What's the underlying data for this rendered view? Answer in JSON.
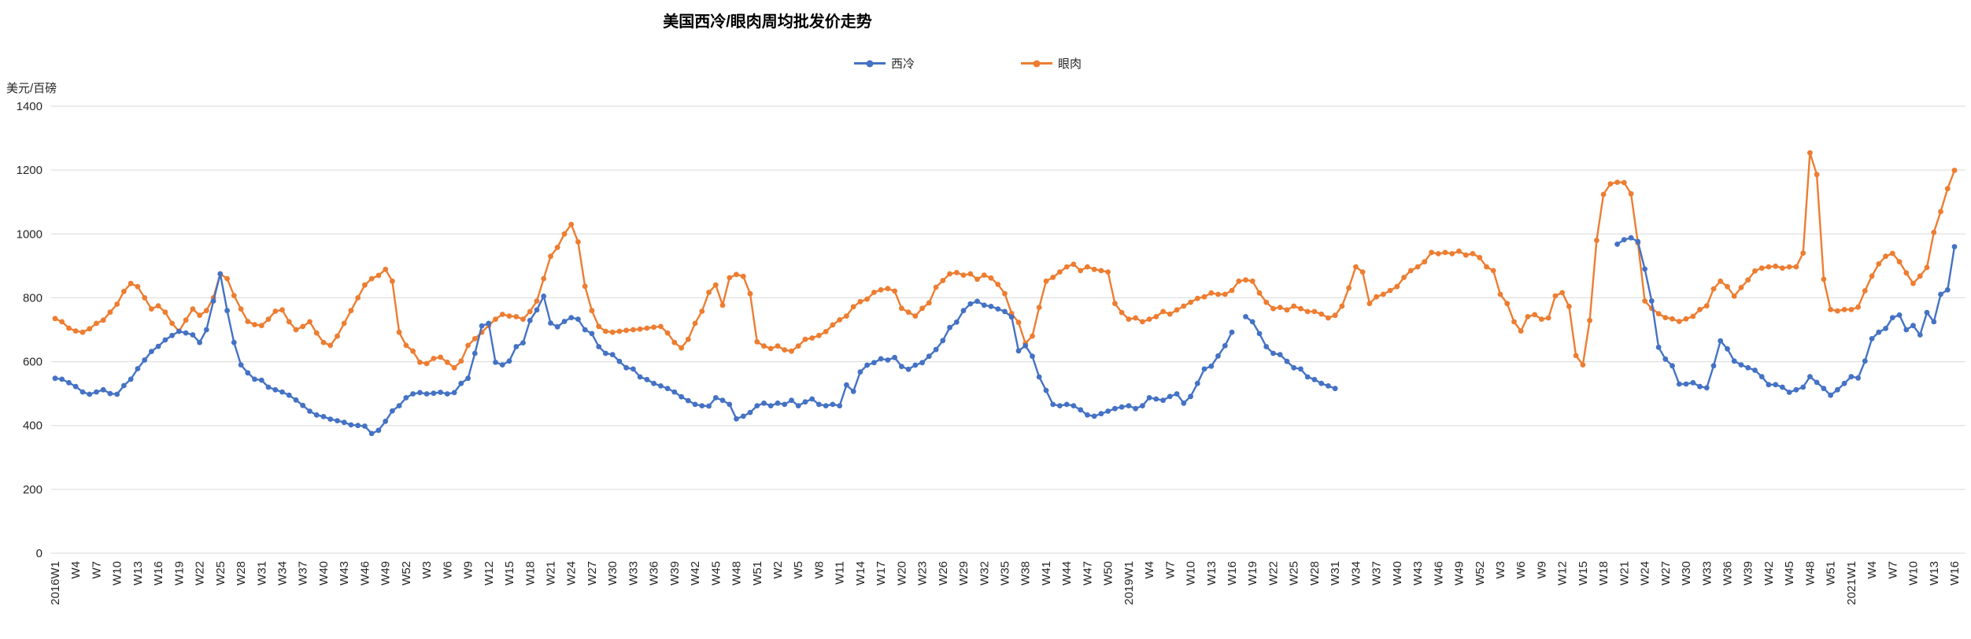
{
  "title": "美国西冷/眼肉周均批发价走势",
  "y_axis_unit": "美元/百磅",
  "colors": {
    "grid": "#D9D9D9",
    "axis_text": "#262626",
    "background": "#FFFFFF"
  },
  "chart_data": {
    "type": "line",
    "title": "美国西冷/眼肉周均批发价走势",
    "xlabel": "",
    "ylabel": "美元/百磅",
    "ylim": [
      0,
      1400
    ],
    "ytick_step": 200,
    "grid": true,
    "legend_position": "top-center",
    "x_tick_interval": 3,
    "x_tick_labels": [
      "2016W1",
      "W4",
      "W7",
      "W10",
      "W13",
      "W16",
      "W19",
      "W22",
      "W25",
      "W28",
      "W31",
      "W34",
      "W37",
      "W40",
      "W43",
      "W46",
      "W49",
      "W52",
      "W3",
      "W6",
      "W9",
      "W12",
      "W15",
      "W18",
      "W21",
      "W24",
      "W27",
      "W30",
      "W33",
      "W36",
      "W39",
      "W42",
      "W45",
      "W48",
      "W51",
      "W2",
      "W5",
      "W8",
      "W11",
      "W14",
      "W17",
      "W20",
      "W23",
      "W26",
      "W29",
      "W32",
      "W35",
      "W38",
      "W41",
      "W44",
      "W47",
      "W50",
      "2019W1",
      "W4",
      "W7",
      "W10",
      "W13",
      "W16",
      "W19",
      "W22",
      "W25",
      "W28",
      "W31",
      "W34",
      "W37",
      "W40",
      "W43",
      "W46",
      "W49",
      "W52",
      "W3",
      "W6",
      "W9",
      "W12",
      "W15",
      "W18",
      "W21",
      "W24",
      "W27",
      "W30",
      "W33",
      "W36",
      "W39",
      "W42",
      "W45",
      "W48",
      "W51",
      "2021W1",
      "W4",
      "W7",
      "W10",
      "W13",
      "W16"
    ],
    "series": [
      {
        "name": "西冷",
        "color": "#4472C4",
        "values": [
          548,
          545,
          534,
          522,
          505,
          498,
          505,
          512,
          500,
          498,
          525,
          545,
          578,
          605,
          632,
          648,
          668,
          682,
          695,
          690,
          684,
          660,
          700,
          790,
          875,
          760,
          660,
          590,
          565,
          545,
          542,
          520,
          512,
          505,
          495,
          480,
          463,
          445,
          433,
          428,
          420,
          415,
          410,
          402,
          400,
          398,
          375,
          385,
          413,
          446,
          462,
          487,
          499,
          503,
          499,
          501,
          504,
          499,
          503,
          532,
          548,
          626,
          712,
          720,
          598,
          590,
          602,
          647,
          659,
          729,
          762,
          805,
          721,
          709,
          726,
          738,
          733,
          700,
          688,
          647,
          626,
          622,
          601,
          581,
          577,
          552,
          544,
          532,
          524,
          516,
          505,
          490,
          478,
          466,
          462,
          461,
          487,
          479,
          466,
          421,
          429,
          441,
          462,
          470,
          462,
          470,
          466,
          479,
          462,
          474,
          483,
          466,
          462,
          466,
          462,
          527,
          507,
          568,
          589,
          597,
          609,
          605,
          613,
          585,
          576,
          589,
          597,
          617,
          638,
          666,
          707,
          724,
          760,
          781,
          789,
          777,
          773,
          765,
          757,
          740,
          634,
          650,
          617,
          552,
          510,
          466,
          462,
          466,
          462,
          449,
          433,
          429,
          437,
          445,
          453,
          458,
          462,
          453,
          462,
          487,
          483,
          479,
          491,
          499,
          470,
          491,
          532,
          577,
          586,
          618,
          650,
          692,
          null,
          741,
          725,
          688,
          647,
          626,
          622,
          601,
          581,
          577,
          552,
          544,
          532,
          524,
          516,
          null,
          null,
          null,
          null,
          null,
          null,
          null,
          null,
          null,
          null,
          null,
          null,
          null,
          null,
          null,
          null,
          null,
          null,
          null,
          null,
          null,
          null,
          null,
          null,
          null,
          null,
          null,
          null,
          null,
          null,
          null,
          null,
          null,
          null,
          null,
          null,
          null,
          null,
          null,
          null,
          968,
          982,
          988,
          976,
          890,
          790,
          645,
          608,
          587,
          530,
          530,
          534,
          522,
          518,
          587,
          665,
          640,
          602,
          590,
          581,
          573,
          553,
          528,
          528,
          520,
          504,
          512,
          520,
          553,
          535,
          516,
          495,
          512,
          532,
          553,
          549,
          602,
          672,
          692,
          704,
          738,
          746,
          700,
          713,
          684,
          754,
          725,
          811,
          825,
          960
        ]
      },
      {
        "name": "眼肉",
        "color": "#ED7D31",
        "values": [
          735,
          725,
          705,
          696,
          692,
          703,
          720,
          730,
          755,
          780,
          820,
          845,
          835,
          800,
          765,
          775,
          755,
          720,
          695,
          730,
          765,
          745,
          760,
          800,
          875,
          860,
          807,
          765,
          726,
          716,
          713,
          733,
          758,
          762,
          725,
          700,
          710,
          725,
          690,
          660,
          651,
          680,
          720,
          760,
          800,
          840,
          860,
          870,
          889,
          852,
          692,
          651,
          633,
          598,
          594,
          610,
          614,
          598,
          581,
          602,
          651,
          672,
          692,
          713,
          733,
          748,
          743,
          741,
          733,
          757,
          790,
          860,
          930,
          958,
          1000,
          1030,
          975,
          836,
          760,
          710,
          695,
          692,
          695,
          698,
          700,
          702,
          705,
          708,
          710,
          690,
          660,
          643,
          670,
          720,
          758,
          817,
          840,
          777,
          863,
          873,
          867,
          813,
          662,
          649,
          641,
          649,
          637,
          633,
          649,
          670,
          674,
          682,
          694,
          715,
          731,
          743,
          772,
          788,
          796,
          817,
          825,
          829,
          821,
          767,
          755,
          743,
          767,
          784,
          833,
          854,
          875,
          879,
          871,
          875,
          858,
          871,
          862,
          842,
          813,
          751,
          723,
          657,
          680,
          770,
          852,
          864,
          881,
          897,
          905,
          885,
          897,
          889,
          885,
          881,
          782,
          754,
          733,
          737,
          725,
          733,
          741,
          757,
          749,
          762,
          774,
          786,
          798,
          803,
          815,
          811,
          811,
          823,
          852,
          856,
          852,
          815,
          786,
          766,
          770,
          762,
          774,
          766,
          757,
          757,
          749,
          737,
          745,
          774,
          831,
          897,
          881,
          782,
          803,
          811,
          823,
          835,
          864,
          885,
          897,
          913,
          942,
          938,
          942,
          938,
          946,
          934,
          938,
          926,
          897,
          885,
          811,
          782,
          725,
          696,
          741,
          747,
          733,
          737,
          806,
          816,
          773,
          619,
          590,
          729,
          980,
          1124,
          1157,
          1162,
          1161,
          1126,
          972,
          790,
          767,
          750,
          738,
          734,
          726,
          734,
          742,
          763,
          775,
          828,
          852,
          835,
          805,
          832,
          856,
          884,
          893,
          897,
          899,
          893,
          897,
          897,
          940,
          1254,
          1186,
          858,
          763,
          759,
          763,
          763,
          771,
          822,
          868,
          906,
          930,
          939,
          913,
          878,
          845,
          868,
          895,
          1005,
          1070,
          1142,
          1199
        ]
      }
    ]
  }
}
